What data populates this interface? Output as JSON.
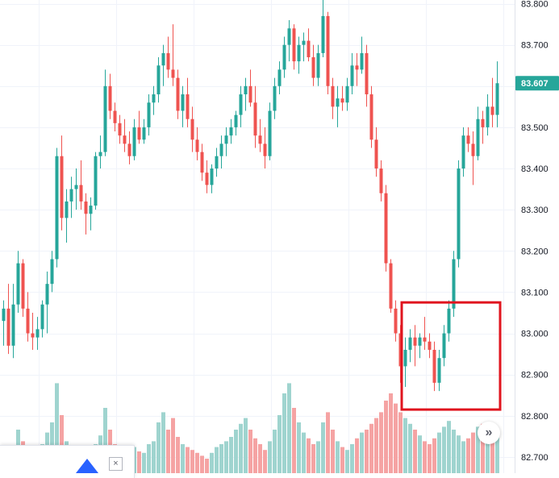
{
  "chart_data": {
    "type": "candlestick",
    "title": "",
    "y_axis": {
      "ticks": [
        "83.800",
        "83.700",
        "83.600",
        "83.500",
        "83.400",
        "83.300",
        "83.200",
        "83.100",
        "83.000",
        "82.900",
        "82.800",
        "82.700"
      ],
      "tick_values": [
        83.8,
        83.7,
        83.6,
        83.5,
        83.4,
        83.3,
        83.2,
        83.1,
        83.0,
        82.9,
        82.8,
        82.7
      ],
      "range": [
        82.69,
        83.805
      ]
    },
    "last_price": {
      "value": 83.607,
      "label": "83.607"
    },
    "colors": {
      "up": "#26a69a",
      "down": "#ef5350",
      "volume_up": "#9fd4cf",
      "volume_down": "#f5a3a3",
      "grid": "#f0f3fa",
      "highlight_box": "#e0141e",
      "last_price_bg": "#26a69a"
    },
    "grid": true,
    "annotation": {
      "type": "rectangle",
      "color": "#e0141e",
      "price_from": 82.815,
      "price_to": 83.075,
      "bar_from": 83,
      "bar_to": 102
    },
    "candles": [
      [
        83.03,
        83.08,
        82.97,
        83.06
      ],
      [
        83.06,
        83.12,
        82.95,
        82.97
      ],
      [
        82.97,
        83.12,
        82.94,
        83.07
      ],
      [
        83.07,
        83.2,
        83.05,
        83.17
      ],
      [
        83.17,
        83.18,
        83.04,
        83.06
      ],
      [
        83.06,
        83.1,
        82.98,
        83.0
      ],
      [
        83.0,
        83.05,
        82.96,
        82.99
      ],
      [
        82.99,
        83.04,
        82.96,
        83.01
      ],
      [
        83.01,
        83.08,
        82.99,
        83.07
      ],
      [
        83.07,
        83.15,
        83.0,
        83.12
      ],
      [
        83.12,
        83.2,
        83.1,
        83.18
      ],
      [
        83.18,
        83.45,
        83.16,
        83.43
      ],
      [
        83.43,
        83.48,
        83.25,
        83.28
      ],
      [
        83.28,
        83.35,
        83.22,
        83.32
      ],
      [
        83.32,
        83.38,
        83.28,
        83.35
      ],
      [
        83.35,
        83.4,
        83.3,
        83.36
      ],
      [
        83.36,
        83.42,
        83.3,
        83.32
      ],
      [
        83.32,
        83.34,
        83.24,
        83.29
      ],
      [
        83.29,
        83.33,
        83.25,
        83.31
      ],
      [
        83.31,
        83.44,
        83.3,
        83.43
      ],
      [
        83.43,
        83.48,
        83.4,
        83.44
      ],
      [
        83.44,
        83.64,
        83.43,
        83.6
      ],
      [
        83.6,
        83.63,
        83.52,
        83.54
      ],
      [
        83.54,
        83.56,
        83.49,
        83.51
      ],
      [
        83.51,
        83.53,
        83.46,
        83.48
      ],
      [
        83.48,
        83.52,
        83.44,
        83.46
      ],
      [
        83.46,
        83.49,
        83.41,
        83.43
      ],
      [
        83.43,
        83.52,
        83.42,
        83.5
      ],
      [
        83.5,
        83.54,
        83.46,
        83.47
      ],
      [
        83.47,
        83.52,
        83.46,
        83.5
      ],
      [
        83.5,
        83.58,
        83.48,
        83.56
      ],
      [
        83.56,
        83.6,
        83.53,
        83.58
      ],
      [
        83.58,
        83.67,
        83.56,
        83.65
      ],
      [
        83.65,
        83.7,
        83.6,
        83.68
      ],
      [
        83.68,
        83.72,
        83.62,
        83.64
      ],
      [
        83.64,
        83.75,
        83.6,
        83.62
      ],
      [
        83.62,
        83.64,
        83.52,
        83.54
      ],
      [
        83.54,
        83.6,
        83.5,
        83.58
      ],
      [
        83.58,
        83.62,
        83.5,
        83.52
      ],
      [
        83.52,
        83.55,
        83.44,
        83.47
      ],
      [
        83.47,
        83.5,
        83.42,
        83.44
      ],
      [
        83.44,
        83.46,
        83.37,
        83.39
      ],
      [
        83.39,
        83.42,
        83.34,
        83.36
      ],
      [
        83.36,
        83.41,
        83.34,
        83.4
      ],
      [
        83.4,
        83.45,
        83.38,
        83.43
      ],
      [
        83.43,
        83.48,
        83.4,
        83.46
      ],
      [
        83.46,
        83.5,
        83.43,
        83.48
      ],
      [
        83.48,
        83.52,
        83.46,
        83.5
      ],
      [
        83.5,
        83.54,
        83.48,
        83.53
      ],
      [
        83.53,
        83.6,
        83.5,
        83.58
      ],
      [
        83.58,
        83.62,
        83.54,
        83.6
      ],
      [
        83.6,
        83.64,
        83.55,
        83.56
      ],
      [
        83.56,
        83.6,
        83.45,
        83.48
      ],
      [
        83.48,
        83.52,
        83.44,
        83.46
      ],
      [
        83.46,
        83.5,
        83.4,
        83.43
      ],
      [
        83.43,
        83.56,
        83.42,
        83.54
      ],
      [
        83.54,
        83.62,
        83.52,
        83.6
      ],
      [
        83.6,
        83.66,
        83.58,
        83.64
      ],
      [
        83.64,
        83.72,
        83.62,
        83.7
      ],
      [
        83.7,
        83.76,
        83.66,
        83.74
      ],
      [
        83.74,
        83.75,
        83.64,
        83.66
      ],
      [
        83.66,
        83.72,
        83.63,
        83.7
      ],
      [
        83.7,
        83.73,
        83.66,
        83.71
      ],
      [
        83.71,
        83.74,
        83.66,
        83.67
      ],
      [
        83.67,
        83.7,
        83.6,
        83.62
      ],
      [
        83.62,
        83.7,
        83.6,
        83.68
      ],
      [
        83.68,
        83.81,
        83.67,
        83.77
      ],
      [
        83.77,
        83.78,
        83.58,
        83.6
      ],
      [
        83.6,
        83.62,
        83.52,
        83.55
      ],
      [
        83.55,
        83.6,
        83.5,
        83.57
      ],
      [
        83.57,
        83.6,
        83.54,
        83.56
      ],
      [
        83.56,
        83.62,
        83.54,
        83.6
      ],
      [
        83.6,
        83.68,
        83.58,
        83.65
      ],
      [
        83.65,
        83.68,
        83.6,
        83.64
      ],
      [
        83.64,
        83.72,
        83.63,
        83.68
      ],
      [
        83.68,
        83.7,
        83.55,
        83.58
      ],
      [
        83.58,
        83.6,
        83.45,
        83.47
      ],
      [
        83.47,
        83.5,
        83.38,
        83.4
      ],
      [
        83.4,
        83.42,
        83.32,
        83.34
      ],
      [
        83.34,
        83.36,
        83.15,
        83.17
      ],
      [
        83.17,
        83.18,
        83.05,
        83.06
      ],
      [
        83.06,
        83.08,
        82.98,
        83.0
      ],
      [
        83.0,
        83.02,
        82.88,
        82.92
      ],
      [
        82.92,
        82.99,
        82.87,
        82.96
      ],
      [
        82.96,
        83.01,
        82.93,
        82.99
      ],
      [
        82.99,
        83.02,
        82.92,
        82.97
      ],
      [
        82.97,
        83.0,
        82.94,
        82.99
      ],
      [
        82.99,
        83.04,
        82.96,
        82.98
      ],
      [
        82.98,
        83.0,
        82.94,
        82.96
      ],
      [
        82.96,
        82.98,
        82.86,
        82.88
      ],
      [
        82.88,
        82.96,
        82.86,
        82.94
      ],
      [
        82.94,
        83.02,
        82.92,
        83.0
      ],
      [
        83.0,
        83.08,
        82.98,
        83.06
      ],
      [
        83.06,
        83.2,
        83.04,
        83.18
      ],
      [
        83.18,
        83.42,
        83.16,
        83.4
      ],
      [
        83.4,
        83.5,
        83.38,
        83.48
      ],
      [
        83.48,
        83.5,
        83.44,
        83.46
      ],
      [
        83.46,
        83.49,
        83.36,
        83.43
      ],
      [
        83.43,
        83.55,
        83.42,
        83.52
      ],
      [
        83.52,
        83.54,
        83.46,
        83.5
      ],
      [
        83.5,
        83.58,
        83.48,
        83.55
      ],
      [
        83.55,
        83.62,
        83.5,
        83.53
      ],
      [
        83.53,
        83.66,
        83.5,
        83.607
      ]
    ],
    "volumes": [
      0.18,
      0.14,
      0.12,
      0.3,
      0.22,
      0.16,
      0.12,
      0.1,
      0.2,
      0.28,
      0.35,
      0.62,
      0.4,
      0.22,
      0.18,
      0.16,
      0.14,
      0.12,
      0.1,
      0.2,
      0.26,
      0.45,
      0.3,
      0.2,
      0.16,
      0.14,
      0.12,
      0.18,
      0.15,
      0.14,
      0.2,
      0.22,
      0.35,
      0.42,
      0.3,
      0.38,
      0.25,
      0.2,
      0.18,
      0.16,
      0.14,
      0.12,
      0.1,
      0.14,
      0.18,
      0.2,
      0.22,
      0.25,
      0.3,
      0.34,
      0.38,
      0.3,
      0.24,
      0.2,
      0.16,
      0.22,
      0.3,
      0.4,
      0.55,
      0.62,
      0.45,
      0.35,
      0.28,
      0.24,
      0.2,
      0.22,
      0.35,
      0.42,
      0.3,
      0.22,
      0.18,
      0.16,
      0.2,
      0.24,
      0.28,
      0.3,
      0.34,
      0.38,
      0.42,
      0.5,
      0.55,
      0.48,
      0.42,
      0.38,
      0.34,
      0.3,
      0.26,
      0.22,
      0.2,
      0.24,
      0.28,
      0.32,
      0.36,
      0.3,
      0.26,
      0.22,
      0.24,
      0.28,
      0.32,
      0.34,
      0.3,
      0.26,
      0.3
    ]
  },
  "controls": {
    "scroll_icon": "»",
    "close_icon": "×"
  }
}
